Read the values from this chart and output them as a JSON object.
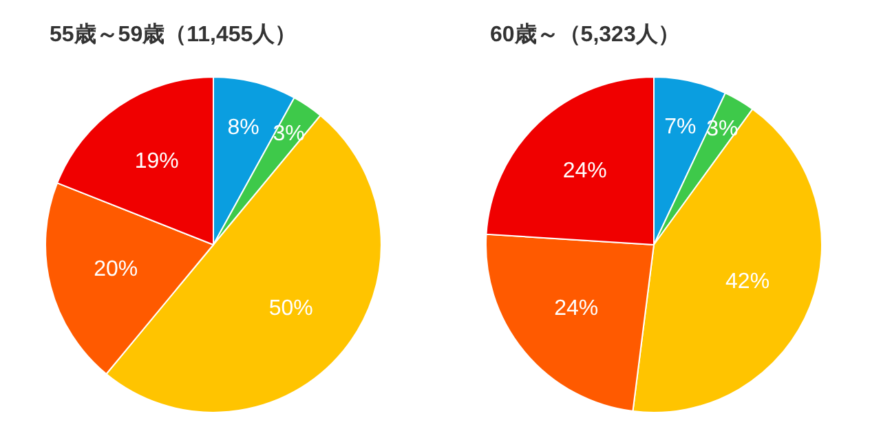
{
  "chart_data": [
    {
      "type": "pie",
      "title": "55歳～59歳（11,455人）",
      "categories": [
        null,
        null,
        null,
        null,
        null
      ],
      "values": [
        8,
        3,
        50,
        20,
        19
      ],
      "value_labels": [
        "8%",
        "3%",
        "50%",
        "20%",
        "19%"
      ],
      "colors": [
        "#0a9ee0",
        "#3ec94a",
        "#ffc400",
        "#ff5a00",
        "#f00000"
      ]
    },
    {
      "type": "pie",
      "title": "60歳～（5,323人）",
      "categories": [
        null,
        null,
        null,
        null,
        null
      ],
      "values": [
        7,
        3,
        42,
        24,
        24
      ],
      "value_labels": [
        "7%",
        "3%",
        "42%",
        "24%",
        "24%"
      ],
      "colors": [
        "#0a9ee0",
        "#3ec94a",
        "#ffc400",
        "#ff5a00",
        "#f00000"
      ]
    }
  ]
}
